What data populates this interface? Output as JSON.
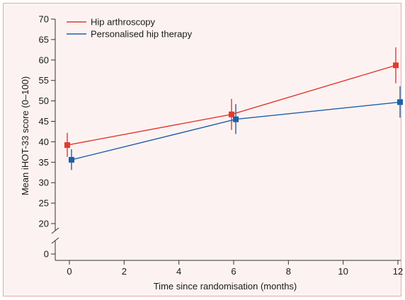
{
  "chart_data": {
    "type": "line",
    "title": "",
    "xlabel": "Time since randomisation (months)",
    "ylabel": "Mean iHOT-33 score (0–100)",
    "x_ticks": [
      0,
      2,
      4,
      6,
      8,
      10,
      12
    ],
    "y_ticks": [
      0,
      20,
      25,
      30,
      35,
      40,
      45,
      50,
      55,
      60,
      65,
      70
    ],
    "y_axis_break": [
      0,
      20
    ],
    "xlim": [
      -0.6,
      12.2
    ],
    "grid": false,
    "legend_position": "top-left",
    "series": [
      {
        "name": "Hip arthroscopy",
        "color": "#e03a2f",
        "points": [
          {
            "x": 0,
            "y": 39.2,
            "low": 36.3,
            "high": 42.2
          },
          {
            "x": 6,
            "y": 46.7,
            "low": 42.9,
            "high": 50.5
          },
          {
            "x": 12,
            "y": 58.7,
            "low": 54.3,
            "high": 63.1
          }
        ]
      },
      {
        "name": "Personalised hip therapy",
        "color": "#1f5fa6",
        "points": [
          {
            "x": 0,
            "y": 35.6,
            "low": 33.1,
            "high": 38.2
          },
          {
            "x": 6,
            "y": 45.5,
            "low": 41.9,
            "high": 49.2
          },
          {
            "x": 12,
            "y": 49.7,
            "low": 45.9,
            "high": 53.6
          }
        ]
      }
    ]
  }
}
